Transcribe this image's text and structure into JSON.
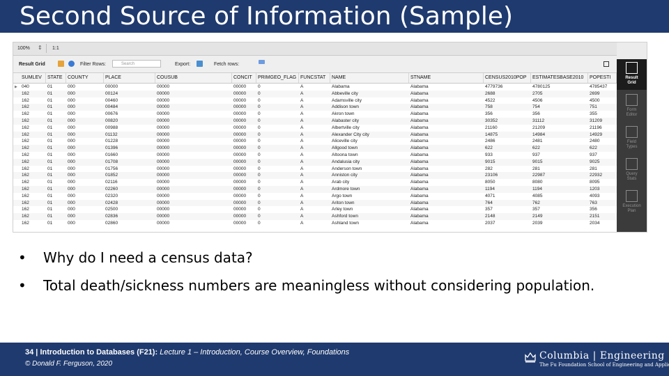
{
  "slide": {
    "title": "Second Source of Information (Sample)"
  },
  "toolbar_top": {
    "zoom": "100%",
    "ratio": "1:1"
  },
  "toolbar": {
    "result_grid": "Result Grid",
    "filter_rows": "Filter Rows:",
    "search_placeholder": "Search",
    "export": "Export:",
    "fetch_rows": "Fetch rows:"
  },
  "columns": [
    "SUMLEV",
    "STATE",
    "COUNTY",
    "PLACE",
    "COUSUB",
    "CONCIT",
    "PRIMGEO_FLAG",
    "FUNCSTAT",
    "NAME",
    "STNAME",
    "CENSUS2010POP",
    "ESTIMATESBASE2010",
    "POPESTI"
  ],
  "rows": [
    [
      "040",
      "01",
      "000",
      "00000",
      "00000",
      "00000",
      "0",
      "A",
      "Alabama",
      "Alabama",
      "4779736",
      "4780125",
      "4785437"
    ],
    [
      "162",
      "01",
      "000",
      "00124",
      "00000",
      "00000",
      "0",
      "A",
      "Abbeville city",
      "Alabama",
      "2688",
      "2705",
      "2699"
    ],
    [
      "162",
      "01",
      "000",
      "00460",
      "00000",
      "00000",
      "0",
      "A",
      "Adamsville city",
      "Alabama",
      "4522",
      "4506",
      "4500"
    ],
    [
      "162",
      "01",
      "000",
      "00484",
      "00000",
      "00000",
      "0",
      "A",
      "Addison town",
      "Alabama",
      "758",
      "754",
      "751"
    ],
    [
      "162",
      "01",
      "000",
      "00676",
      "00000",
      "00000",
      "0",
      "A",
      "Akron town",
      "Alabama",
      "356",
      "356",
      "355"
    ],
    [
      "162",
      "01",
      "000",
      "00820",
      "00000",
      "00000",
      "0",
      "A",
      "Alabaster city",
      "Alabama",
      "30352",
      "31112",
      "31209"
    ],
    [
      "162",
      "01",
      "000",
      "00988",
      "00000",
      "00000",
      "0",
      "A",
      "Albertville city",
      "Alabama",
      "21160",
      "21209",
      "21196"
    ],
    [
      "162",
      "01",
      "000",
      "01132",
      "00000",
      "00000",
      "0",
      "A",
      "Alexander City city",
      "Alabama",
      "14875",
      "14984",
      "14929"
    ],
    [
      "162",
      "01",
      "000",
      "01228",
      "00000",
      "00000",
      "0",
      "A",
      "Aliceville city",
      "Alabama",
      "2486",
      "2481",
      "2480"
    ],
    [
      "162",
      "01",
      "000",
      "01396",
      "00000",
      "00000",
      "0",
      "A",
      "Allgood town",
      "Alabama",
      "622",
      "622",
      "622"
    ],
    [
      "162",
      "01",
      "000",
      "01660",
      "00000",
      "00000",
      "0",
      "A",
      "Altoona town",
      "Alabama",
      "933",
      "937",
      "937"
    ],
    [
      "162",
      "01",
      "000",
      "01708",
      "00000",
      "00000",
      "0",
      "A",
      "Andalusia city",
      "Alabama",
      "9015",
      "9015",
      "9025"
    ],
    [
      "162",
      "01",
      "000",
      "01756",
      "00000",
      "00000",
      "0",
      "A",
      "Anderson town",
      "Alabama",
      "282",
      "281",
      "281"
    ],
    [
      "162",
      "01",
      "000",
      "01852",
      "00000",
      "00000",
      "0",
      "A",
      "Anniston city",
      "Alabama",
      "23106",
      "22987",
      "22932"
    ],
    [
      "162",
      "01",
      "000",
      "02116",
      "00000",
      "00000",
      "0",
      "A",
      "Arab city",
      "Alabama",
      "8050",
      "8080",
      "8095"
    ],
    [
      "162",
      "01",
      "000",
      "02260",
      "00000",
      "00000",
      "0",
      "A",
      "Ardmore town",
      "Alabama",
      "1194",
      "1194",
      "1203"
    ],
    [
      "162",
      "01",
      "000",
      "02320",
      "00000",
      "00000",
      "0",
      "A",
      "Argo town",
      "Alabama",
      "4071",
      "4085",
      "4093"
    ],
    [
      "162",
      "01",
      "000",
      "02428",
      "00000",
      "00000",
      "0",
      "A",
      "Ariton town",
      "Alabama",
      "764",
      "762",
      "763"
    ],
    [
      "162",
      "01",
      "000",
      "02500",
      "00000",
      "00000",
      "0",
      "A",
      "Arley town",
      "Alabama",
      "357",
      "357",
      "356"
    ],
    [
      "162",
      "01",
      "000",
      "02836",
      "00000",
      "00000",
      "0",
      "A",
      "Ashford town",
      "Alabama",
      "2148",
      "2149",
      "2151"
    ],
    [
      "162",
      "01",
      "000",
      "02860",
      "00000",
      "00000",
      "0",
      "A",
      "Ashland town",
      "Alabama",
      "2037",
      "2039",
      "2034"
    ]
  ],
  "side_panel": [
    {
      "label1": "Result",
      "label2": "Grid",
      "active": true
    },
    {
      "label1": "Form",
      "label2": "Editor",
      "active": false
    },
    {
      "label1": "Field",
      "label2": "Types",
      "active": false
    },
    {
      "label1": "Query",
      "label2": "Stats",
      "active": false
    },
    {
      "label1": "Execution",
      "label2": "Plan",
      "active": false
    }
  ],
  "bullets": [
    "Why do I need a census data?",
    "Total death/sickness numbers are meaningless without considering population."
  ],
  "footer": {
    "page_number": "34",
    "course": "Introduction to Databases (F21):",
    "lecture": "Lecture 1 – Introduction, Course Overview, Foundations",
    "copyright": "© Donald F. Ferguson, 2020",
    "logo_name": "Columbia | Engineering",
    "logo_sub": "The Fu Foundation School of Engineering and Applied Science"
  },
  "colors": {
    "banner": "#1f3a6e",
    "sidebar": "#3b3b3b"
  }
}
